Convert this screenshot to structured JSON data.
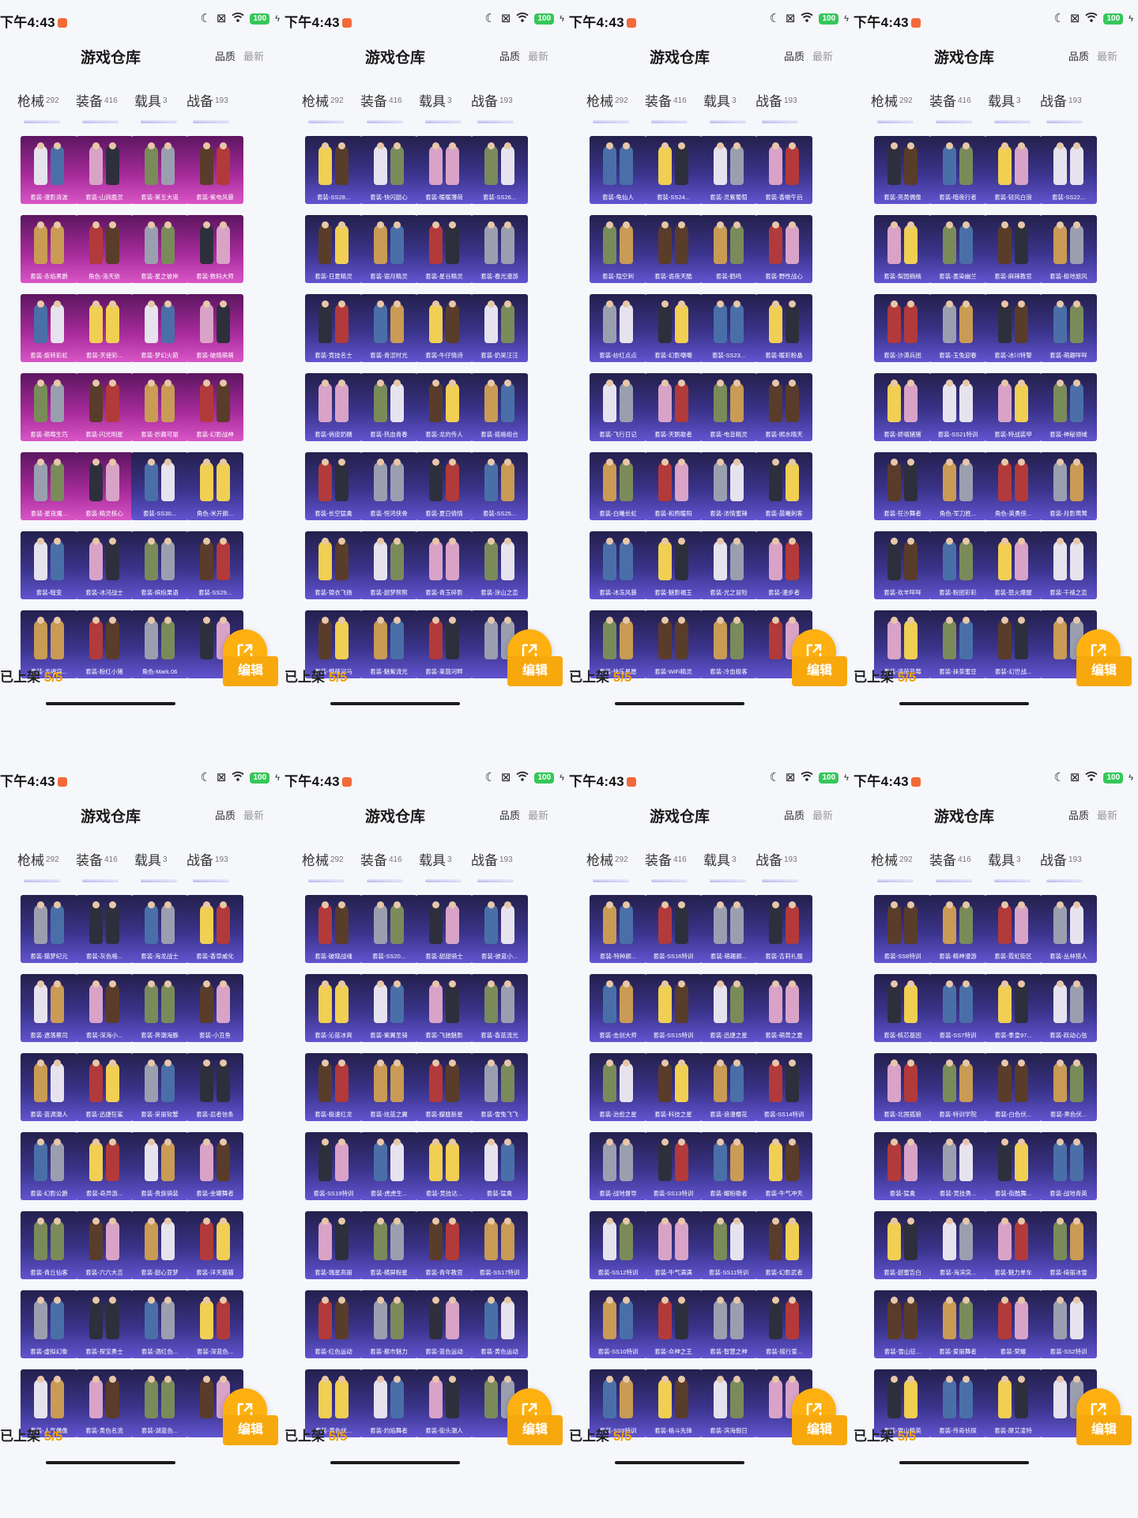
{
  "status": {
    "time": "下午4:43",
    "battery": "100"
  },
  "header": {
    "title": "游戏仓库",
    "sort_quality": "品质",
    "sort_newest": "最新"
  },
  "tabs": [
    {
      "label": "枪械",
      "count": "292"
    },
    {
      "label": "装备",
      "count": "416"
    },
    {
      "label": "载具",
      "count": "3"
    },
    {
      "label": "战备",
      "count": "193"
    }
  ],
  "bottom": {
    "shelf_label": "已上架",
    "shelf_count": "5/5",
    "edit_label": "编辑"
  },
  "icons": {
    "moon": "moon-icon",
    "wifi": "wifi-icon",
    "share": "share-icon",
    "signal": "signal-icon"
  },
  "colors": {
    "accent": "#f7a80d",
    "tab_indicator": "#5b55d8",
    "legendary": "#a72b9b",
    "epic": "#3a338a"
  },
  "panels": [
    {
      "rarity": [
        "pink",
        "pink",
        "pink",
        "pink",
        "pink",
        "pink",
        "pink",
        "pink",
        "pink",
        "pink",
        "pink",
        "pink",
        "pink",
        "pink",
        "pink",
        "pink",
        "pink",
        "pink",
        "purple",
        "purple",
        "purple",
        "purple",
        "purple",
        "purple",
        "purple",
        "purple",
        "purple",
        "purple"
      ],
      "items": [
        "套装-漫影清波",
        "套装-山涧鹿灵",
        "套装-第五大道",
        "套装-紫电风暴",
        "套装-赤焰黑爵",
        "角色-洛天依",
        "套装-星之彼岸",
        "套装-数码大师",
        "套装-旋转彩虹",
        "套装-天使彩...",
        "套装-梦幻火箭",
        "套装-破晓萌萌",
        "套装-萌莓生巧",
        "套装-闪光明星",
        "套装-妙趣可丽",
        "套装-幻影战神",
        "套装-星夜魔...",
        "套装-精灵核心",
        "套装-SS30...",
        "角色-米开朗...",
        "套装-暗变",
        "套装-冰河战士",
        "套装-缤纷果语",
        "套装-SS29...",
        "套装-龙魂突...",
        "套装-粉红小猪",
        "角色-Mark.06",
        ""
      ]
    },
    {
      "rarity": [
        "purple",
        "purple",
        "purple",
        "purple",
        "purple",
        "purple",
        "purple",
        "purple",
        "purple",
        "purple",
        "purple",
        "purple",
        "purple",
        "purple",
        "purple",
        "purple",
        "purple",
        "purple",
        "purple",
        "purple",
        "purple",
        "purple",
        "purple",
        "purple",
        "purple",
        "purple",
        "purple",
        "purple"
      ],
      "items": [
        "套装-SS28...",
        "套装-快闪甜心",
        "套装-暖暖薄荷",
        "套装-SS26...",
        "套装-日夏精灵",
        "套装-银月精灵",
        "套装-星谷精灵",
        "套装-春光漫游",
        "套装-竞技名士",
        "套装-青涩时光",
        "套装-牛仔情诗",
        "套装-奶昊汪汪",
        "套装-俏皮奶糖",
        "套装-热血青春",
        "套装-龙的传人",
        "套装-摇格组合",
        "套装-长空猛禽",
        "套装-恒鸿侠骨",
        "套装-夏日倩情",
        "套装-SS25...",
        "套装-锦衣飞扬",
        "套装-甜梦熊熊",
        "套装-青玉碎影",
        "套装-涂山之恋",
        "套装-懵萌河马",
        "套装-魅紫流光",
        "套装-莱茵河畔",
        ""
      ]
    },
    {
      "rarity": [
        "purple",
        "purple",
        "purple",
        "purple",
        "purple",
        "purple",
        "purple",
        "purple",
        "purple",
        "purple",
        "purple",
        "purple",
        "purple",
        "purple",
        "purple",
        "purple",
        "purple",
        "purple",
        "purple",
        "purple",
        "purple",
        "purple",
        "purple",
        "purple",
        "purple",
        "purple",
        "purple",
        "purple"
      ],
      "items": [
        "套装-龟仙人",
        "套装-SS24...",
        "套装-灵紫葡萄",
        "套装-香榭午后",
        "套装-隐空刺",
        "套装-诡夜天酷",
        "套装-鹤鸣",
        "套装-野性战心",
        "套装-纱红点点",
        "套装-幻影嘲嘲",
        "套装-SS23...",
        "套装-暖彩粉晶",
        "套装-飞行日记",
        "套装-天鹅歌者",
        "套装-电音精灵",
        "套装-照水晴天",
        "套装-白曦长虹",
        "套装-和煦暖阳",
        "套装-浓情蜜辣",
        "套装-晨曦刺客",
        "套装-冰冻风暴",
        "套装-魅影福王",
        "套装-光之冒险",
        "套装-漫步者",
        "套装-快乐星愿",
        "套装-WiFi精灵",
        "套装-冷血极客",
        ""
      ]
    },
    {
      "rarity": [
        "purple",
        "purple",
        "purple",
        "purple",
        "purple",
        "purple",
        "purple",
        "purple",
        "purple",
        "purple",
        "purple",
        "purple",
        "purple",
        "purple",
        "purple",
        "purple",
        "purple",
        "purple",
        "purple",
        "purple",
        "purple",
        "purple",
        "purple",
        "purple",
        "purple",
        "purple",
        "purple",
        "purple"
      ],
      "items": [
        "套装-亮黄偶像",
        "套装-暗夜行者",
        "套装-轻风白浪",
        "套装-SS22...",
        "套装-梨园楠楠",
        "套装-墨染幽兰",
        "套装-麻辣教官",
        "套装-极地旅风",
        "套装-沙漠兵团",
        "套装-玉兔迎春",
        "套装-冰川特警",
        "套装-萌趣咩咩",
        "套装-娇嗔猪猪",
        "套装-SS21特训",
        "套装-特战装甲",
        "套装-神秘领域",
        "套装-狂沙舞者",
        "角色-军刀胜...",
        "角色-英勇侠...",
        "套装-月影莺莺",
        "套装-欢羊咩咩",
        "套装-粉团彩彩",
        "套装-怒火爆屋",
        "套装-千禧之恋",
        "套装-清荷蓝莓",
        "套装-抹茶蜜豆",
        "套装-幻世战...",
        ""
      ]
    },
    {
      "rarity": [
        "purple",
        "purple",
        "purple",
        "purple",
        "purple",
        "purple",
        "purple",
        "purple",
        "purple",
        "purple",
        "purple",
        "purple",
        "purple",
        "purple",
        "purple",
        "purple",
        "purple",
        "purple",
        "purple",
        "purple",
        "purple",
        "purple",
        "purple",
        "purple",
        "purple",
        "purple",
        "purple",
        "purple"
      ],
      "items": [
        "套装-猫梦纪元",
        "套装-灰色格...",
        "套装-海龙战士",
        "套装-香草威化",
        "套装-遗落蔡司",
        "套装-深海小...",
        "套装-奔潮海豚",
        "套装-小丑鱼",
        "套装-蓝调潮人",
        "套装-迅捷狂鲨",
        "套装-采丽软蟹",
        "套装-忍者信条",
        "套装-幻影公爵",
        "套装-奇异游...",
        "套装-贵族骑装",
        "套装-金罐舞者",
        "套装-青丘仙客",
        "套装-六六大吉",
        "套装-甜心亚梦",
        "套装-洋天猫猫",
        "套装-虚拟幻象",
        "套装-探宝勇士",
        "套装-酒红色...",
        "套装-深蓝色...",
        "套装-人气偶像",
        "套装-黄色名流",
        "套装-湖蓝色...",
        ""
      ]
    },
    {
      "rarity": [
        "purple",
        "purple",
        "purple",
        "purple",
        "purple",
        "purple",
        "purple",
        "purple",
        "purple",
        "purple",
        "purple",
        "purple",
        "purple",
        "purple",
        "purple",
        "purple",
        "purple",
        "purple",
        "purple",
        "purple",
        "purple",
        "purple",
        "purple",
        "purple",
        "purple",
        "purple",
        "purple",
        "purple"
      ],
      "items": [
        "套装-破晓战魂",
        "套装-SS20...",
        "套装-甜甜骑士",
        "套装-彼蓝小...",
        "套装-沁蓝冰爽",
        "套装-紫翼圣骑",
        "套装-飞驰魅影",
        "套装-香蓝流光",
        "套装-极速红龙",
        "套装-炫蓝之翼",
        "套装-朦胧新星",
        "套装-雪兔飞飞",
        "套装-SS19特训",
        "套装-虎虎生...",
        "套装-竞技达...",
        "套装-猛禽",
        "套装-瑞星高丽",
        "套装-横屏粉星",
        "套装-青年教官",
        "套装-SS17特训",
        "套装-红色运动",
        "套装-都市魅力",
        "套装-蓝色运动",
        "套装-黄色运动",
        "套装-黄色伏...",
        "套装-灼焰舞者",
        "套装-街头潮人",
        ""
      ]
    },
    {
      "rarity": [
        "purple",
        "purple",
        "purple",
        "purple",
        "purple",
        "purple",
        "purple",
        "purple",
        "purple",
        "purple",
        "purple",
        "purple",
        "purple",
        "purple",
        "purple",
        "purple",
        "purple",
        "purple",
        "purple",
        "purple",
        "purple",
        "purple",
        "purple",
        "purple",
        "purple",
        "purple",
        "purple",
        "purple"
      ],
      "items": [
        "套装-特种颜...",
        "套装-SS16特训",
        "套装-萌趣颜...",
        "套装-吉莉礼服",
        "套装-击剑大师",
        "套装-SS15特训",
        "套装-迅捷之星",
        "套装-萌黄之夏",
        "套装-治愈之星",
        "套装-科技之星",
        "套装-浪漫樱花",
        "套装-SS14特训",
        "套装-战地督导",
        "套装-SS13特训",
        "套装-耀粉歌者",
        "套装-牛气冲天",
        "套装-SS12特训",
        "套装-牛气满满",
        "套装-SS11特训",
        "套装-幻影武者",
        "套装-SS10特训",
        "套装-众神之王",
        "套装-智慧之神",
        "套装-摇行爱...",
        "套装-SS9特训",
        "套装-格斗先锋",
        "套装-滨海假日",
        ""
      ]
    },
    {
      "rarity": [
        "purple",
        "purple",
        "purple",
        "purple",
        "purple",
        "purple",
        "purple",
        "purple",
        "purple",
        "purple",
        "purple",
        "purple",
        "purple",
        "purple",
        "purple",
        "purple",
        "purple",
        "purple",
        "purple",
        "purple",
        "purple",
        "purple",
        "purple",
        "purple",
        "purple",
        "purple",
        "purple",
        "purple"
      ],
      "items": [
        "套装-SS8特训",
        "套装-精神漫游",
        "套装-霓虹街区",
        "套装-丛林猎人",
        "套装-核芯基因",
        "套装-SS7特训",
        "套装-季皇97...",
        "套装-跃动心弦",
        "套装-北国孤狼",
        "套装-特训学院",
        "套装-白色伏...",
        "套装-黑色伏...",
        "套装-猛禽",
        "套装-竞技勇...",
        "套装-街酷舞...",
        "套装-战地青英",
        "套装-甜蜜告白",
        "套装-海滨突...",
        "套装-魅力单车",
        "套装-绮丽冰雪",
        "套装-雪山征...",
        "套装-爱丽舞者",
        "套装-荣耀",
        "套装-SS2特训",
        "套装-雪山精英",
        "套装-传奇侦探",
        "套装-摩艾凌特",
        ""
      ]
    }
  ]
}
